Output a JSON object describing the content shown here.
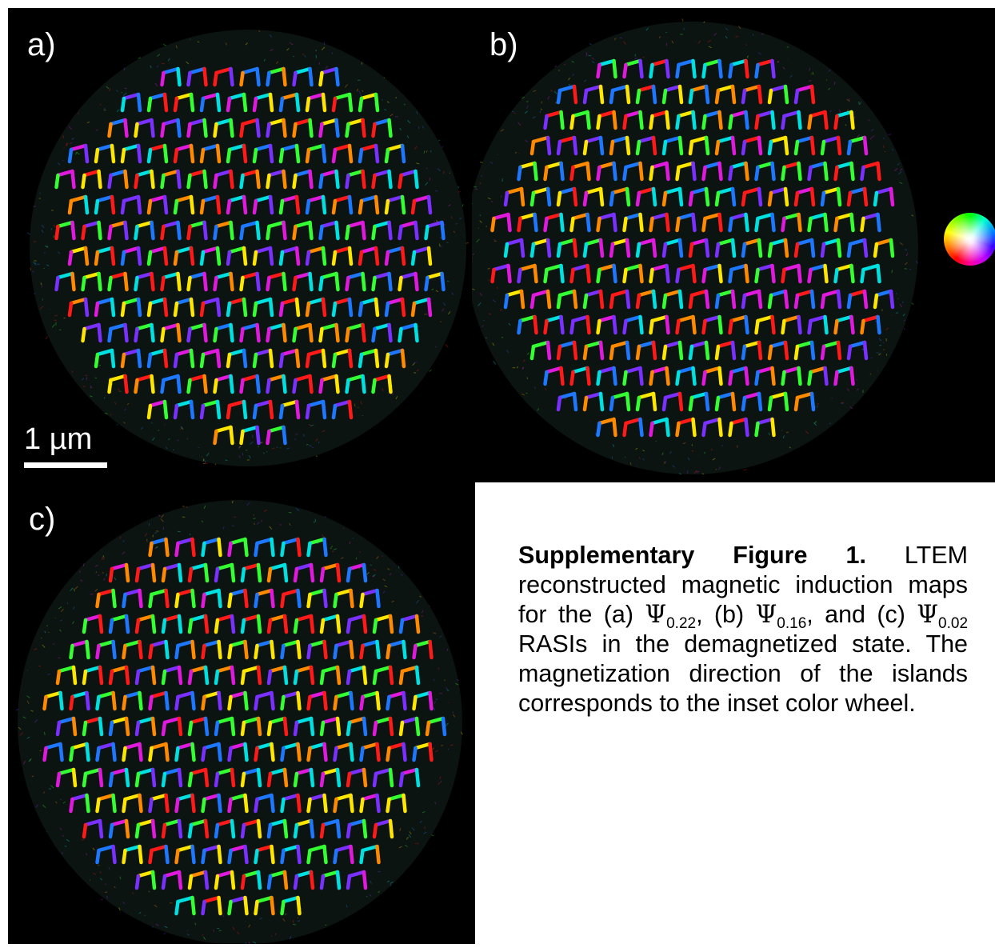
{
  "panels": [
    {
      "label": "a)",
      "name": "panel-a"
    },
    {
      "label": "b)",
      "name": "panel-b"
    },
    {
      "label": "c)",
      "name": "panel-c"
    }
  ],
  "scalebar": {
    "label": "1 µm"
  },
  "colors": {
    "background": "#000000",
    "stripe_palette": [
      "#ff1a1a",
      "#ff8a00",
      "#ffe600",
      "#33ff33",
      "#00e0e0",
      "#1e78ff",
      "#7a30ff",
      "#e01adc"
    ]
  },
  "caption": {
    "title": "Supplementary Figure 1.",
    "text_1": "LTEM reconstructed magnetic induction maps for the (a)",
    "psi_symbol": "Ψ",
    "sub_a": "0.22",
    "text_2": ", (b)",
    "sub_b": "0.16",
    "text_3": ", and (c)",
    "sub_c": "0.02",
    "text_4": "RASIs in the demagnetized state. The magnetization direction of the islands corresponds to the inset color wheel."
  }
}
